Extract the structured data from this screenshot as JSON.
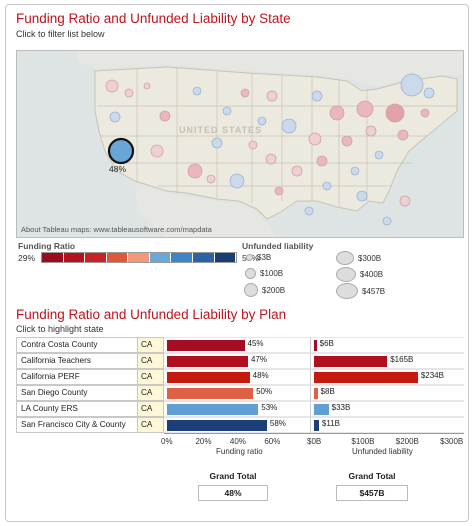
{
  "map_section": {
    "title": "Funding Ratio and Unfunded Liability by State",
    "subtitle": "Click to filter list below",
    "map_watermark": "UNITED STATES",
    "selected_label": "48%",
    "credit": "About Tableau maps: www.tableausoftware.com/mapdata"
  },
  "legend": {
    "funding_title": "Funding Ratio",
    "min_label": "29%",
    "max_label": "59%",
    "colors": [
      "#9b0a1e",
      "#b3121e",
      "#c82320",
      "#e0583c",
      "#f09a7a",
      "#6aa8d8",
      "#3f84c4",
      "#2a63a6",
      "#1a3e72"
    ],
    "unfunded_title": "Unfunded liability",
    "sizes": [
      "$3B",
      "$100B",
      "$200B",
      "$300B",
      "$400B",
      "$457B"
    ]
  },
  "plan_section": {
    "title": "Funding Ratio and Unfunded Liability by Plan",
    "subtitle": "Click to highlight state"
  },
  "plans": [
    {
      "name": "Contra Costa County",
      "state": "CA",
      "ratio": 45,
      "ratio_label": "45%",
      "liability": 6,
      "liability_label": "$6B",
      "color": "#a40d22"
    },
    {
      "name": "California Teachers",
      "state": "CA",
      "ratio": 47,
      "ratio_label": "47%",
      "liability": 165,
      "liability_label": "$165B",
      "color": "#b0101e"
    },
    {
      "name": "California PERF",
      "state": "CA",
      "ratio": 48,
      "ratio_label": "48%",
      "liability": 234,
      "liability_label": "$234B",
      "color": "#c41a10"
    },
    {
      "name": "San Diego County",
      "state": "CA",
      "ratio": 50,
      "ratio_label": "50%",
      "liability": 8,
      "liability_label": "$8B",
      "color": "#e06046"
    },
    {
      "name": "LA County ERS",
      "state": "CA",
      "ratio": 53,
      "ratio_label": "53%",
      "liability": 33,
      "liability_label": "$33B",
      "color": "#5f9fd4"
    },
    {
      "name": "San Francisco City & County",
      "state": "CA",
      "ratio": 58,
      "ratio_label": "58%",
      "liability": 11,
      "liability_label": "$11B",
      "color": "#1d3f77"
    }
  ],
  "ratio_axis": {
    "ticks": [
      "0%",
      "20%",
      "40%",
      "60%"
    ],
    "max": 72,
    "title": "Funding ratio"
  },
  "liability_axis": {
    "ticks": [
      "$0B",
      "$100B",
      "$200B",
      "$300B"
    ],
    "max": 320,
    "title": "Unfunded liability"
  },
  "grand_total": {
    "label": "Grand Total",
    "ratio_value": "48%",
    "liability_value": "$457B"
  }
}
